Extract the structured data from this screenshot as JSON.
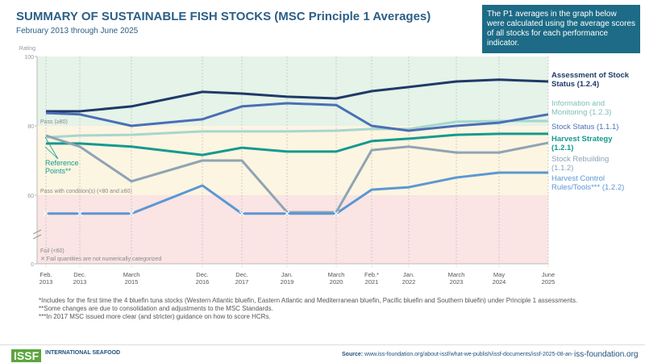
{
  "chart_data": {
    "type": "line",
    "title": "SUMMARY OF SUSTAINABLE FISH STOCKS (MSC Principle 1 Averages)",
    "subtitle": "February 2013 through June 2025",
    "info": "The P1 averages in the graph below were calculated using the average scores of all stocks for each performance indicator.",
    "y_label": "Rating",
    "ylim": [
      0,
      100
    ],
    "yticks": [
      0,
      60,
      80,
      100
    ],
    "y_break": true,
    "categories": [
      "Feb. 2013",
      "Dec. 2013",
      "March 2015",
      "Dec. 2016",
      "Dec. 2017",
      "Jan. 2019",
      "March 2020",
      "Feb.* 2021",
      "Jan. 2022",
      "March 2023",
      "May 2024",
      "June 2025"
    ],
    "bands": [
      {
        "label": "Pass (≥80)",
        "from": 80,
        "to": 100,
        "color": "#e5f3e8"
      },
      {
        "label": "Pass with condition(s) (<80 and ≥60)",
        "from": 60,
        "to": 80,
        "color": "#fcf5e1"
      },
      {
        "label": "Fail (<60)",
        "from": 0,
        "to": 60,
        "color": "#fae4e4"
      }
    ],
    "fail_note": "✕ Fail quantities are not numerically categorized",
    "annotation": "Reference Points**",
    "series": [
      {
        "name": "Assessment of Stock Status (1.2.4)",
        "color": "#1f3a68",
        "values": [
          84.2,
          84.2,
          85.6,
          89.8,
          89.3,
          88.4,
          87.9,
          90,
          91.2,
          92.8,
          93.3,
          92.8
        ]
      },
      {
        "name": "Information and Monitoring (1.2.3)",
        "color": "#a6d6cf",
        "values": [
          76.7,
          77.2,
          77.4,
          78.4,
          78.4,
          78.4,
          78.6,
          79.1,
          79.1,
          81.2,
          81.4,
          81.4
        ]
      },
      {
        "name": "Stock Status (1.1.1)",
        "color": "#4a6fb5",
        "values": [
          83.7,
          83.3,
          80,
          81.9,
          85.6,
          86.5,
          86,
          80,
          78.6,
          80,
          80.9,
          83.3
        ]
      },
      {
        "name": "Harvest Strategy (1.2.1)",
        "color": "#149a8f",
        "values": [
          74.9,
          74.9,
          74,
          71.6,
          73.7,
          72.6,
          72.6,
          75.6,
          76.3,
          77.4,
          77.7,
          77.7
        ]
      },
      {
        "name": "Stock Rebuilding (1.1.2)",
        "color": "#8ea4b4",
        "values": [
          77.2,
          74,
          64,
          70,
          70,
          55.1,
          55.1,
          73,
          74,
          72.3,
          72.3,
          75.1
        ]
      },
      {
        "name": "Harvest Control Rules/Tools*** (1.2.2)",
        "color": "#5b97d3",
        "values": [
          54.7,
          54.7,
          54.7,
          62.8,
          54.7,
          54.7,
          54.7,
          61.6,
          62.3,
          65.1,
          66.5,
          66.5
        ],
        "markers": [
          true,
          true,
          true,
          false,
          true,
          true,
          true,
          false,
          false,
          false,
          false,
          false
        ]
      }
    ]
  },
  "footnotes": [
    "*Includes for the first time the 4 bluefin tuna stocks (Western Atlantic bluefin, Eastern Atlantic and Mediterranean bluefin, Pacific bluefin and Southern bluefin) under Principle 1 assessments.",
    "**Some changes are due to consolidation and adjustments to the MSC Standards.",
    "***In 2017 MSC issued more clear (and stricter) guidance on how to score HCRs."
  ],
  "footer": {
    "logo": "ISSF",
    "org": "INTERNATIONAL SEAFOOD",
    "source_label": "Source:",
    "source": "www.iss-foundation.org/about-issf/what-we-publish/issf-documents/issf-2025-08-an-",
    "website": "iss-foundation.org"
  }
}
